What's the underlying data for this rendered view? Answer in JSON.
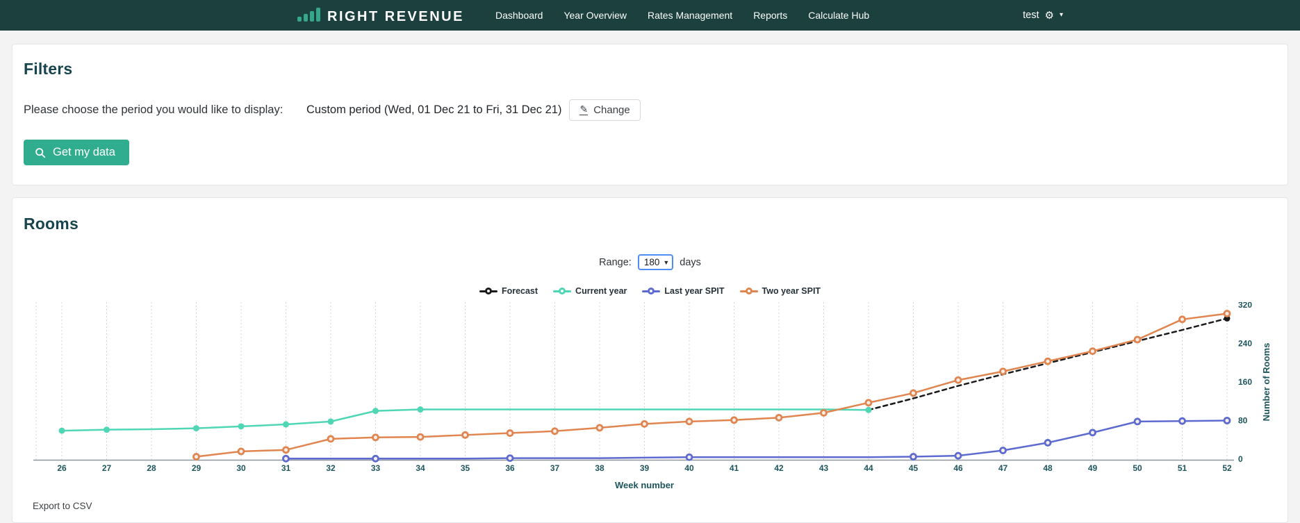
{
  "navbar": {
    "brand": "RIGHT REVENUE",
    "links": [
      {
        "label": "Dashboard"
      },
      {
        "label": "Year Overview"
      },
      {
        "label": "Rates Management"
      },
      {
        "label": "Reports"
      },
      {
        "label": "Calculate Hub"
      }
    ],
    "user": "test",
    "colors": {
      "background": "#1c403d",
      "accent": "#35a78c"
    }
  },
  "filters": {
    "title": "Filters",
    "prompt": "Please choose the period you would like to display:",
    "period": "Custom period (Wed, 01 Dec 21 to Fri, 31 Dec 21)",
    "change_label": "Change",
    "get_data_label": "Get my data",
    "button_color": "#30ac8f"
  },
  "rooms": {
    "title": "Rooms",
    "range_label": "Range:",
    "range_value": "180",
    "range_unit": "days",
    "export_label": "Export to CSV"
  },
  "chart_data": {
    "type": "line",
    "xlabel": "Week number",
    "ylabel": "Number of Rooms",
    "x_ticks": [
      26,
      27,
      28,
      29,
      30,
      31,
      32,
      33,
      34,
      35,
      36,
      37,
      38,
      39,
      40,
      41,
      42,
      43,
      44,
      45,
      46,
      47,
      48,
      49,
      50,
      51,
      52
    ],
    "y_ticks": [
      0,
      80,
      160,
      240,
      320
    ],
    "ylim": [
      0,
      320
    ],
    "grid": "vertical-dotted",
    "legend_position": "top-center",
    "axis_text_color": "#1d555c",
    "series": [
      {
        "name": "Forecast",
        "color": "#1a1a1a",
        "dashed": true,
        "marker_fill": "solid",
        "marker_x": [
          52
        ],
        "points": [
          [
            44,
            102
          ],
          [
            45,
            126
          ],
          [
            46,
            152
          ],
          [
            47,
            176
          ],
          [
            48,
            199
          ],
          [
            49,
            222
          ],
          [
            50,
            245
          ],
          [
            51,
            268
          ],
          [
            52,
            292
          ]
        ]
      },
      {
        "name": "Current year",
        "color": "#4ed6b5",
        "dashed": false,
        "marker_fill": "solid",
        "marker_x": [
          26,
          27,
          29,
          30,
          31,
          32,
          33,
          34,
          44
        ],
        "points": [
          [
            26,
            59
          ],
          [
            27,
            61
          ],
          [
            28,
            62
          ],
          [
            29,
            64
          ],
          [
            30,
            68
          ],
          [
            31,
            72
          ],
          [
            32,
            78
          ],
          [
            33,
            100
          ],
          [
            34,
            103
          ],
          [
            35,
            103
          ],
          [
            36,
            103
          ],
          [
            37,
            103
          ],
          [
            38,
            103
          ],
          [
            39,
            103
          ],
          [
            40,
            103
          ],
          [
            41,
            103
          ],
          [
            42,
            103
          ],
          [
            43,
            103
          ],
          [
            44,
            102
          ]
        ]
      },
      {
        "name": "Last year SPIT",
        "color": "#5d6bd1",
        "dashed": false,
        "marker_fill": "ring",
        "marker_x": [
          31,
          33,
          36,
          40,
          45,
          46,
          47,
          48,
          49,
          50,
          51,
          52
        ],
        "points": [
          [
            31,
            1
          ],
          [
            32,
            1
          ],
          [
            33,
            1
          ],
          [
            34,
            1
          ],
          [
            35,
            1
          ],
          [
            36,
            2
          ],
          [
            37,
            2
          ],
          [
            38,
            2
          ],
          [
            39,
            3
          ],
          [
            40,
            4
          ],
          [
            41,
            4
          ],
          [
            42,
            4
          ],
          [
            43,
            4
          ],
          [
            44,
            4
          ],
          [
            45,
            5
          ],
          [
            46,
            7
          ],
          [
            47,
            18
          ],
          [
            48,
            34
          ],
          [
            49,
            55
          ],
          [
            50,
            78
          ],
          [
            51,
            79
          ],
          [
            52,
            80
          ]
        ]
      },
      {
        "name": "Two year SPIT",
        "color": "#e0854f",
        "dashed": false,
        "marker_fill": "ring",
        "marker_x": [
          29,
          30,
          31,
          32,
          33,
          34,
          35,
          36,
          37,
          38,
          39,
          40,
          41,
          42,
          43,
          44,
          45,
          46,
          47,
          48,
          49,
          50,
          51,
          52
        ],
        "points": [
          [
            29,
            5
          ],
          [
            30,
            16
          ],
          [
            31,
            19
          ],
          [
            32,
            42
          ],
          [
            33,
            45
          ],
          [
            34,
            46
          ],
          [
            35,
            50
          ],
          [
            36,
            54
          ],
          [
            37,
            58
          ],
          [
            38,
            65
          ],
          [
            39,
            73
          ],
          [
            40,
            78
          ],
          [
            41,
            81
          ],
          [
            42,
            86
          ],
          [
            43,
            96
          ],
          [
            44,
            117
          ],
          [
            45,
            137
          ],
          [
            46,
            164
          ],
          [
            47,
            182
          ],
          [
            48,
            203
          ],
          [
            49,
            224
          ],
          [
            50,
            248
          ],
          [
            51,
            290
          ],
          [
            52,
            302
          ]
        ]
      }
    ]
  }
}
